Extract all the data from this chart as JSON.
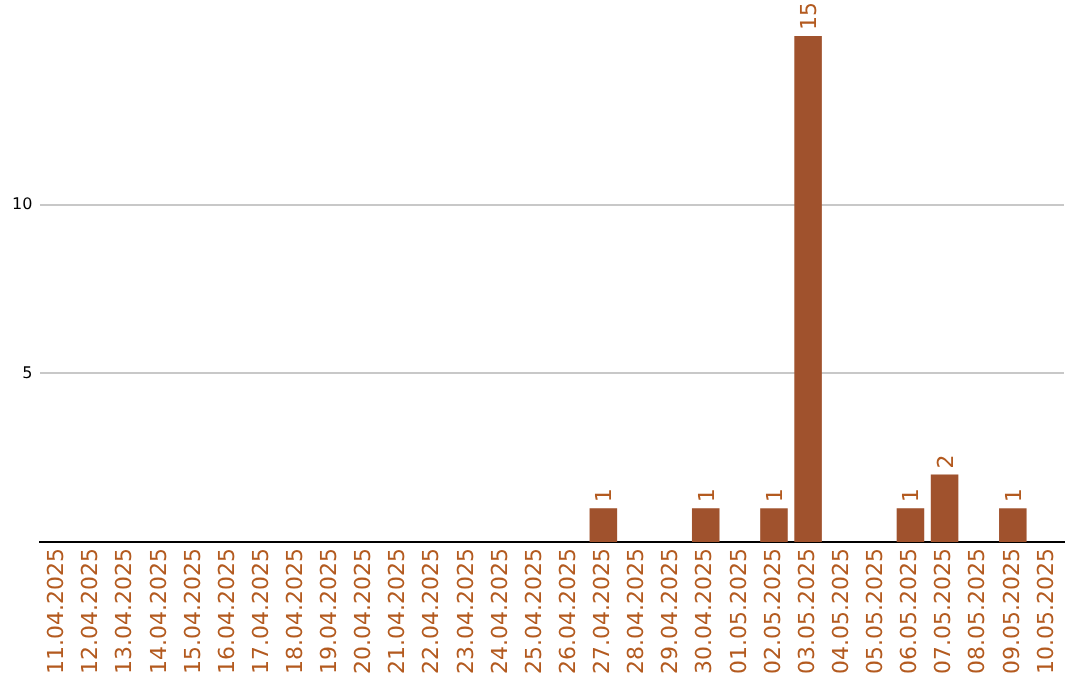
{
  "chart_data": {
    "type": "bar",
    "categories": [
      "11.04.2025",
      "12.04.2025",
      "13.04.2025",
      "14.04.2025",
      "15.04.2025",
      "16.04.2025",
      "17.04.2025",
      "18.04.2025",
      "19.04.2025",
      "20.04.2025",
      "21.04.2025",
      "22.04.2025",
      "23.04.2025",
      "24.04.2025",
      "25.04.2025",
      "26.04.2025",
      "27.04.2025",
      "28.04.2025",
      "29.04.2025",
      "30.04.2025",
      "01.05.2025",
      "02.05.2025",
      "03.05.2025",
      "04.05.2025",
      "05.05.2025",
      "06.05.2025",
      "07.05.2025",
      "08.05.2025",
      "09.05.2025",
      "10.05.2025"
    ],
    "values": [
      0,
      0,
      0,
      0,
      0,
      0,
      0,
      0,
      0,
      0,
      0,
      0,
      0,
      0,
      0,
      0,
      1,
      0,
      0,
      1,
      0,
      1,
      15,
      0,
      0,
      1,
      2,
      0,
      1,
      0
    ],
    "value_labels": [
      null,
      null,
      null,
      null,
      null,
      null,
      null,
      null,
      null,
      null,
      null,
      null,
      null,
      null,
      null,
      null,
      "1",
      null,
      null,
      "1",
      null,
      "1",
      "15",
      null,
      null,
      "1",
      "2",
      null,
      "1",
      null
    ],
    "color": "#a0522d",
    "ylim": [
      0,
      15
    ],
    "yticks": [
      5,
      10
    ],
    "grid": "y",
    "legend": false
  }
}
